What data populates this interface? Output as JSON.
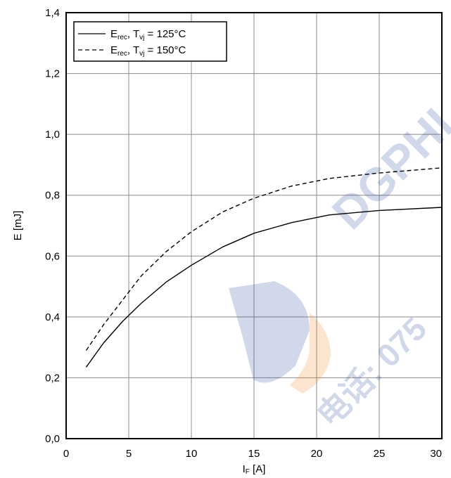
{
  "chart_data": {
    "type": "line",
    "title": "",
    "xlabel": {
      "main": "I",
      "sub": "F",
      "unit": " [A]"
    },
    "ylabel": "E [mJ]",
    "xlim": [
      0,
      30
    ],
    "ylim": [
      0,
      1.4
    ],
    "xticks": [
      0,
      5,
      10,
      15,
      20,
      25,
      30
    ],
    "xtick_labels": [
      "0",
      "5",
      "10",
      "15",
      "20",
      "25",
      "30"
    ],
    "yticks": [
      0,
      0.2,
      0.4,
      0.6,
      0.8,
      1.0,
      1.2,
      1.4
    ],
    "ytick_labels": [
      "0,0",
      "0,2",
      "0,4",
      "0,6",
      "0,8",
      "1,0",
      "1,2",
      "1,4"
    ],
    "grid": true,
    "legend_position": "top-left",
    "series": [
      {
        "name": "E_rec, T_vj = 125°C",
        "name_parts": {
          "main": "E",
          "sub": "rec",
          "mid": ", T",
          "sub2": "vj",
          "tail": " = 125°C"
        },
        "style": "solid",
        "color": "#000000",
        "x": [
          1.6,
          3,
          4.5,
          6,
          8,
          10,
          12.5,
          15,
          18,
          21,
          25,
          30
        ],
        "y": [
          0.235,
          0.315,
          0.385,
          0.445,
          0.515,
          0.57,
          0.63,
          0.675,
          0.71,
          0.735,
          0.75,
          0.76
        ]
      },
      {
        "name": "E_rec, T_vj = 150°C",
        "name_parts": {
          "main": "E",
          "sub": "rec",
          "mid": ", T",
          "sub2": "vj",
          "tail": " = 150°C"
        },
        "style": "dashed",
        "color": "#000000",
        "x": [
          1.6,
          3,
          4.5,
          6,
          8,
          10,
          12.5,
          15,
          18,
          21,
          25,
          30
        ],
        "y": [
          0.29,
          0.375,
          0.455,
          0.535,
          0.615,
          0.68,
          0.745,
          0.79,
          0.83,
          0.855,
          0.873,
          0.89
        ]
      }
    ]
  },
  "watermark": {
    "brand": "DGPHI",
    "phone_prefix": "电话: 075",
    "colors": {
      "blue": "#2e4f9c",
      "orange": "#f08a24"
    }
  }
}
